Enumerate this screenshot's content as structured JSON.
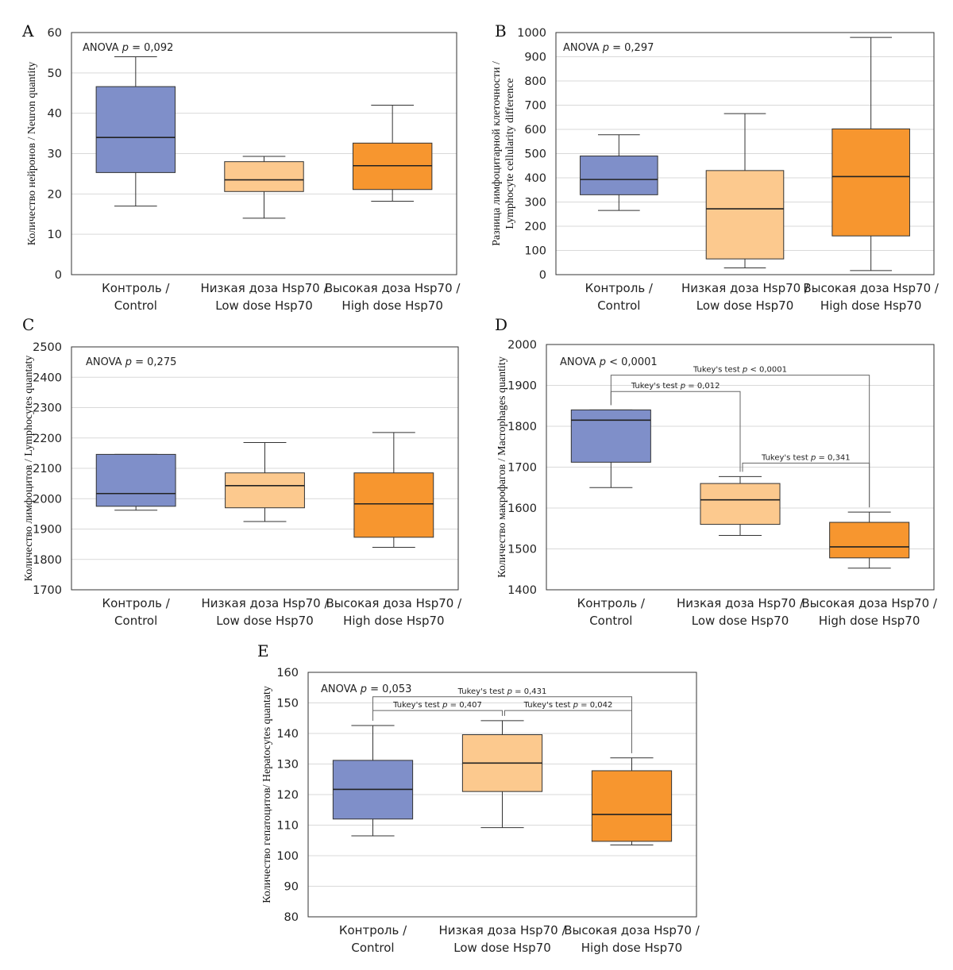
{
  "colors": {
    "control": "#7f8fc9",
    "low": "#fcc98e",
    "high": "#f7962f"
  },
  "chart_data": [
    {
      "type": "box",
      "panel": "A",
      "ylabel": "Количество нейронов / Neuron quantity",
      "ylim": [
        0,
        60
      ],
      "yticks": [
        0,
        10,
        20,
        30,
        40,
        50,
        60
      ],
      "categories": [
        [
          "Контроль /",
          "Control"
        ],
        [
          "Низкая доза Hsp70 /",
          "Low dose Hsp70"
        ],
        [
          "Высокая доза Hsp70 /",
          "High dose Hsp70"
        ]
      ],
      "boxes": [
        {
          "min": 17,
          "q1": 25.3,
          "median": 34,
          "q3": 46.6,
          "max": 54
        },
        {
          "min": 14,
          "q1": 20.6,
          "median": 23.5,
          "q3": 28,
          "max": 29.3
        },
        {
          "min": 18.2,
          "q1": 21.1,
          "median": 27,
          "q3": 32.6,
          "max": 42
        }
      ],
      "anova": {
        "prefix": "ANOVA",
        "p": "p",
        "rest": " = 0,092"
      },
      "comparisons": []
    },
    {
      "type": "box",
      "panel": "B",
      "ylabel": [
        "Разница лимфоцитарной клеточности /",
        "Lymphocyte cellularity difference"
      ],
      "ylim": [
        0,
        1000
      ],
      "yticks": [
        0,
        100,
        200,
        300,
        400,
        500,
        600,
        700,
        800,
        900,
        1000
      ],
      "categories": [
        [
          "Контроль /",
          "Control"
        ],
        [
          "Низкая доза Hsp70 /",
          "Low dose Hsp70"
        ],
        [
          "Высокая доза Hsp70 /",
          "High dose Hsp70"
        ]
      ],
      "boxes": [
        {
          "min": 265,
          "q1": 330,
          "median": 393,
          "q3": 490,
          "max": 578
        },
        {
          "min": 28,
          "q1": 65,
          "median": 272,
          "q3": 430,
          "max": 665
        },
        {
          "min": 17,
          "q1": 160,
          "median": 405,
          "q3": 602,
          "max": 980
        }
      ],
      "anova": {
        "prefix": "ANOVA",
        "p": "p",
        "rest": " = 0,297"
      },
      "comparisons": []
    },
    {
      "type": "box",
      "panel": "C",
      "ylabel": "Количество лимфоцитов / Lymphocytes quantaty",
      "ylim": [
        1700,
        2500
      ],
      "yticks": [
        1700,
        1800,
        1900,
        2000,
        2100,
        2200,
        2300,
        2400,
        2500
      ],
      "categories": [
        [
          "Контроль /",
          "Control"
        ],
        [
          "Низкая доза Hsp70 /",
          "Low dose Hsp70"
        ],
        [
          "Высокая доза Hsp70 /",
          "High dose Hsp70"
        ]
      ],
      "boxes": [
        {
          "min": 1962,
          "q1": 1975,
          "median": 2017,
          "q3": 2146,
          "max": 2146
        },
        {
          "min": 1925,
          "q1": 1970,
          "median": 2043,
          "q3": 2085,
          "max": 2185
        },
        {
          "min": 1840,
          "q1": 1873,
          "median": 1983,
          "q3": 2085,
          "max": 2218
        }
      ],
      "anova": {
        "prefix": "ANOVA",
        "p": "p",
        "rest": " = 0,275"
      },
      "comparisons": []
    },
    {
      "type": "box",
      "panel": "D",
      "ylabel": "Количество макрофагов / Macrophages quantity",
      "ylim": [
        1400,
        2000
      ],
      "yticks": [
        1400,
        1500,
        1600,
        1700,
        1800,
        1900,
        2000
      ],
      "categories": [
        [
          "Контроль /",
          "Control"
        ],
        [
          "Низкая доза Hsp70 /",
          "Low dose Hsp70"
        ],
        [
          "Высокая доза Hsp70 /",
          "High dose Hsp70"
        ]
      ],
      "boxes": [
        {
          "min": 1650,
          "q1": 1712,
          "median": 1815,
          "q3": 1840,
          "max": 1840
        },
        {
          "min": 1533,
          "q1": 1560,
          "median": 1620,
          "q3": 1660,
          "max": 1677
        },
        {
          "min": 1453,
          "q1": 1478,
          "median": 1505,
          "q3": 1565,
          "max": 1590
        }
      ],
      "anova": {
        "prefix": "ANOVA",
        "p": "p",
        "rest": " < 0,0001"
      },
      "comparisons": [
        {
          "from": 0,
          "to": 2,
          "level": 1925,
          "label": "Tukey's test p < 0,0001",
          "pre": "Tukey's test ",
          "p": "p",
          "rest": " < 0,0001"
        },
        {
          "from": 0,
          "to": 1,
          "level": 1885,
          "label": "Tukey's test p = 0,012",
          "pre": "Tukey's test ",
          "p": "p",
          "rest": " = 0,012"
        },
        {
          "from": 1,
          "to": 2,
          "level": 1710,
          "label": "Tukey's test p = 0,341",
          "pre": "Tukey's test ",
          "p": "p",
          "rest": " = 0,341"
        }
      ]
    },
    {
      "type": "box",
      "panel": "E",
      "ylabel": "Количество гепатоцитов/ Hepatocytes quantaty",
      "ylim": [
        80,
        160
      ],
      "yticks": [
        80,
        90,
        100,
        110,
        120,
        130,
        140,
        150,
        160
      ],
      "categories": [
        [
          "Контроль /",
          "Control"
        ],
        [
          "Низкая доза Hsp70 /",
          "Low dose Hsp70"
        ],
        [
          "Высокая доза Hsp70 /",
          "High dose Hsp70"
        ]
      ],
      "boxes": [
        {
          "min": 106.5,
          "q1": 112,
          "median": 121.7,
          "q3": 131.2,
          "max": 142.6
        },
        {
          "min": 109.2,
          "q1": 121,
          "median": 130.3,
          "q3": 139.6,
          "max": 144.2
        },
        {
          "min": 103.5,
          "q1": 104.7,
          "median": 113.5,
          "q3": 127.8,
          "max": 132
        }
      ],
      "anova": {
        "prefix": "ANOVA",
        "p": "p",
        "rest": " = 0,053"
      },
      "comparisons": [
        {
          "from": 0,
          "to": 2,
          "level": 152,
          "label": "Tukey's test p = 0,431",
          "pre": "Tukey's test ",
          "p": "p",
          "rest": " = 0,431"
        },
        {
          "from": 0,
          "to": 1,
          "level": 147.5,
          "label": "Tukey's test p = 0,407",
          "pre": "Tukey's test ",
          "p": "p",
          "rest": " = 0,407"
        },
        {
          "from": 1,
          "to": 2,
          "level": 147.5,
          "label": "Tukey's test p = 0,042",
          "pre": "Tukey's test ",
          "p": "p",
          "rest": " = 0,042"
        }
      ]
    }
  ]
}
